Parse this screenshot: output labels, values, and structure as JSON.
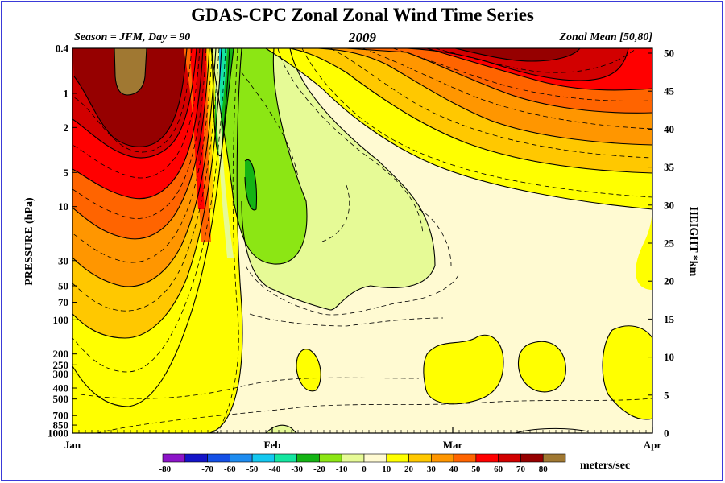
{
  "header": {
    "title": "GDAS-CPC Zonal Zonal Wind Time Series",
    "season_label": "Season = JFM, Day =  90",
    "year": "2009",
    "region_label": "Zonal Mean [50,80]"
  },
  "chart_data": {
    "type": "heatmap",
    "title": "GDAS-CPC Zonal Zonal Wind Time Series",
    "subtitle_left": "Season = JFM, Day =  90",
    "subtitle_center": "2009",
    "subtitle_right": "Zonal Mean [50,80]",
    "x_ticks": [
      "Jan",
      "Feb",
      "Mar",
      "Apr"
    ],
    "x_tick_days": [
      0,
      31,
      59,
      90
    ],
    "xlim": [
      0,
      90
    ],
    "ylabel": "PRESSURE (hPa)",
    "y_ticks": [
      "0.4",
      "1",
      "2",
      "5",
      "10",
      "30",
      "50",
      "70",
      "100",
      "200",
      "250",
      "300",
      "400",
      "500",
      "700",
      "850",
      "1000"
    ],
    "y_tick_values": [
      0.4,
      1,
      2,
      5,
      10,
      30,
      50,
      70,
      100,
      200,
      250,
      300,
      400,
      500,
      700,
      850,
      1000
    ],
    "y_scale": "log",
    "ylim": [
      1000,
      0.4
    ],
    "y2label": "HEIGHT *km",
    "y2_ticks": [
      "0",
      "5",
      "10",
      "15",
      "20",
      "25",
      "30",
      "35",
      "40",
      "45",
      "50"
    ],
    "y2_tick_values": [
      0,
      5,
      10,
      15,
      20,
      25,
      30,
      35,
      40,
      45,
      50
    ],
    "colorbar": {
      "levels": [
        "-80",
        "-70",
        "-60",
        "-50",
        "-40",
        "-30",
        "-20",
        "-10",
        "0",
        "10",
        "20",
        "30",
        "40",
        "50",
        "60",
        "70",
        "80"
      ],
      "colors": [
        "#8c14c8",
        "#1414c8",
        "#1450e6",
        "#1e8cf0",
        "#14c8f0",
        "#14e6a0",
        "#14b414",
        "#8ce614",
        "#e6fa96",
        "#fffad2",
        "#ffff00",
        "#ffc800",
        "#ff9600",
        "#ff6400",
        "#ff0000",
        "#d20000",
        "#960000",
        "#a07832"
      ],
      "units": "meters/sec"
    },
    "notes": "Zonal-mean zonal wind (50-80N), contoured every 10 m/s with dashed 5 m/s intermediate lines. Jan: strong westerlies >70 m/s near 0.4-1 hPa; late Jan: sudden reversal to easterlies (-40 to -20 m/s) around 1-10 hPa; Feb-Mar: weak easterlies/westerlies in mid-stratosphere, westerlies rebuilding aloft reaching 60-70 m/s near 0.4 hPa by March."
  }
}
